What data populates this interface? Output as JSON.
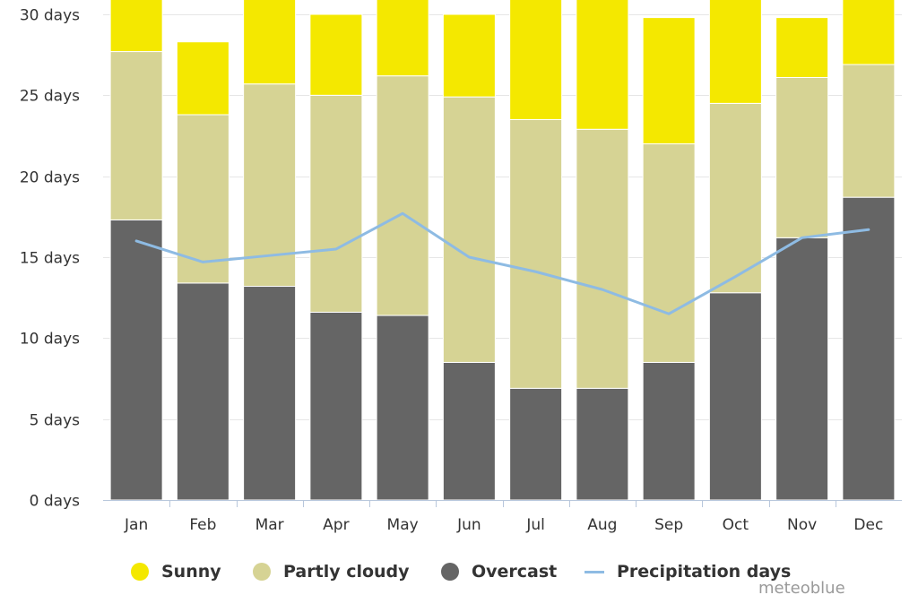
{
  "chart_data": {
    "type": "bar",
    "stacked": true,
    "categories": [
      "Jan",
      "Feb",
      "Mar",
      "Apr",
      "May",
      "Jun",
      "Jul",
      "Aug",
      "Sep",
      "Oct",
      "Nov",
      "Dec"
    ],
    "series": [
      {
        "name": "Overcast",
        "kind": "bar",
        "color": "#656565",
        "values": [
          17.3,
          13.4,
          13.2,
          11.6,
          11.4,
          8.5,
          6.9,
          6.9,
          8.5,
          12.8,
          16.2,
          18.7
        ]
      },
      {
        "name": "Partly cloudy",
        "kind": "bar",
        "color": "#d6d394",
        "values": [
          10.4,
          10.4,
          12.5,
          13.4,
          14.8,
          16.4,
          16.6,
          16.0,
          13.5,
          11.7,
          9.9,
          8.2
        ]
      },
      {
        "name": "Sunny",
        "kind": "bar",
        "color": "#f4e800",
        "values": [
          3.3,
          4.5,
          5.3,
          5.0,
          4.9,
          5.1,
          7.5,
          8.2,
          7.8,
          6.6,
          3.7,
          4.1
        ]
      },
      {
        "name": "Precipitation days",
        "kind": "line",
        "color": "#8ebbe3",
        "values": [
          16.0,
          14.7,
          15.1,
          15.5,
          17.7,
          15.0,
          14.1,
          13.0,
          11.5,
          13.8,
          16.2,
          16.7
        ]
      }
    ],
    "ylim": [
      0,
      30
    ],
    "yticks": [
      "0 days",
      "5 days",
      "10 days",
      "15 days",
      "20 days",
      "25 days",
      "30 days"
    ],
    "grid": true,
    "legend_position": "bottom"
  },
  "credit": "meteoblue"
}
